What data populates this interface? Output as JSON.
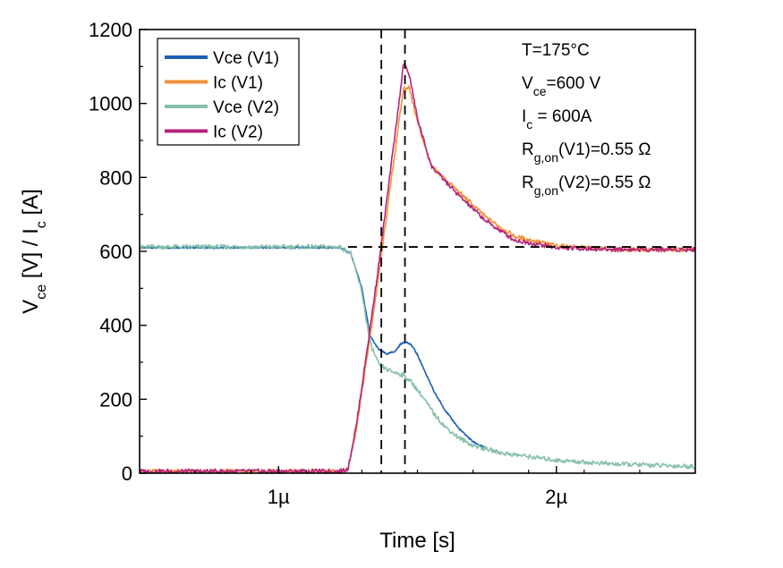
{
  "chart_data": {
    "type": "line",
    "xlabel": "Time [s]",
    "ylabel": {
      "parts": [
        "V",
        "ce",
        " [V] / I",
        "c",
        " [A]"
      ]
    },
    "xlim": [
      5e-07,
      2.5e-06
    ],
    "ylim": [
      0,
      1200
    ],
    "xticks": [
      {
        "value": 1e-06,
        "label": "1µ"
      },
      {
        "value": 2e-06,
        "label": "2µ"
      }
    ],
    "yticks": [
      {
        "value": 0,
        "label": "0"
      },
      {
        "value": 200,
        "label": "200"
      },
      {
        "value": 400,
        "label": "400"
      },
      {
        "value": 600,
        "label": "600"
      },
      {
        "value": 800,
        "label": "800"
      },
      {
        "value": 1000,
        "label": "1000"
      },
      {
        "value": 1200,
        "label": "1200"
      }
    ],
    "grid": false,
    "legend_position": "top-left",
    "series": [
      {
        "name": "Vce (V1)",
        "color": "#1f5fb4",
        "x": [
          5e-07,
          1.22e-06,
          1.26e-06,
          1.3e-06,
          1.33e-06,
          1.36e-06,
          1.39e-06,
          1.42e-06,
          1.44e-06,
          1.46e-06,
          1.48e-06,
          1.5e-06,
          1.53e-06,
          1.56e-06,
          1.6e-06,
          1.65e-06,
          1.7e-06,
          1.74e-06
        ],
        "y": [
          610,
          610,
          595,
          500,
          370,
          335,
          322,
          330,
          350,
          355,
          345,
          320,
          270,
          220,
          170,
          120,
          85,
          70
        ]
      },
      {
        "name": "Ic (V1)",
        "color": "#f0913a",
        "x": [
          5e-07,
          1.22e-06,
          1.25e-06,
          1.28e-06,
          1.32e-06,
          1.36e-06,
          1.4e-06,
          1.43e-06,
          1.45e-06,
          1.47e-06,
          1.5e-06,
          1.55e-06,
          1.6e-06,
          1.65e-06,
          1.75e-06,
          1.85e-06,
          2e-06,
          2.2e-06,
          2.5e-06
        ],
        "y": [
          5,
          5,
          10,
          120,
          320,
          530,
          760,
          930,
          1040,
          1045,
          950,
          830,
          795,
          760,
          690,
          640,
          615,
          605,
          605
        ]
      },
      {
        "name": "Vce (V2)",
        "color": "#86c0aa",
        "x": [
          5e-07,
          1.22e-06,
          1.26e-06,
          1.3e-06,
          1.33e-06,
          1.36e-06,
          1.39e-06,
          1.42e-06,
          1.45e-06,
          1.48e-06,
          1.52e-06,
          1.56e-06,
          1.6e-06,
          1.65e-06,
          1.7e-06,
          1.8e-06,
          1.9e-06,
          2e-06,
          2.2e-06,
          2.5e-06
        ],
        "y": [
          612,
          612,
          595,
          490,
          350,
          295,
          280,
          272,
          265,
          245,
          205,
          160,
          125,
          95,
          75,
          55,
          45,
          35,
          25,
          18
        ]
      },
      {
        "name": "Ic (V2)",
        "color": "#b4247e",
        "x": [
          5e-07,
          1.22e-06,
          1.25e-06,
          1.28e-06,
          1.32e-06,
          1.36e-06,
          1.4e-06,
          1.43e-06,
          1.45e-06,
          1.47e-06,
          1.5e-06,
          1.55e-06,
          1.6e-06,
          1.65e-06,
          1.75e-06,
          1.85e-06,
          2e-06,
          2.2e-06,
          2.5e-06
        ],
        "y": [
          5,
          5,
          12,
          130,
          340,
          560,
          800,
          980,
          1110,
          1080,
          960,
          830,
          790,
          750,
          680,
          630,
          610,
          605,
          605
        ]
      }
    ],
    "reference_lines": [
      {
        "orientation": "vertical",
        "value": 1.37e-06,
        "style": "dashed"
      },
      {
        "orientation": "vertical",
        "value": 1.455e-06,
        "style": "dashed"
      },
      {
        "orientation": "horizontal",
        "value": 612,
        "from": 1.25e-06,
        "to": 2.5e-06,
        "style": "dashed"
      }
    ],
    "annotations": [
      {
        "parts": [
          "T=175°C"
        ]
      },
      {
        "parts": [
          "V",
          "ce",
          "=600 V"
        ]
      },
      {
        "parts": [
          "I",
          "c",
          " = 600A"
        ]
      },
      {
        "parts": [
          "R",
          "g,on",
          "(V1)=0.55 Ω"
        ]
      },
      {
        "parts": [
          "R",
          "g,on",
          "(V2)=0.55 Ω"
        ]
      }
    ]
  }
}
